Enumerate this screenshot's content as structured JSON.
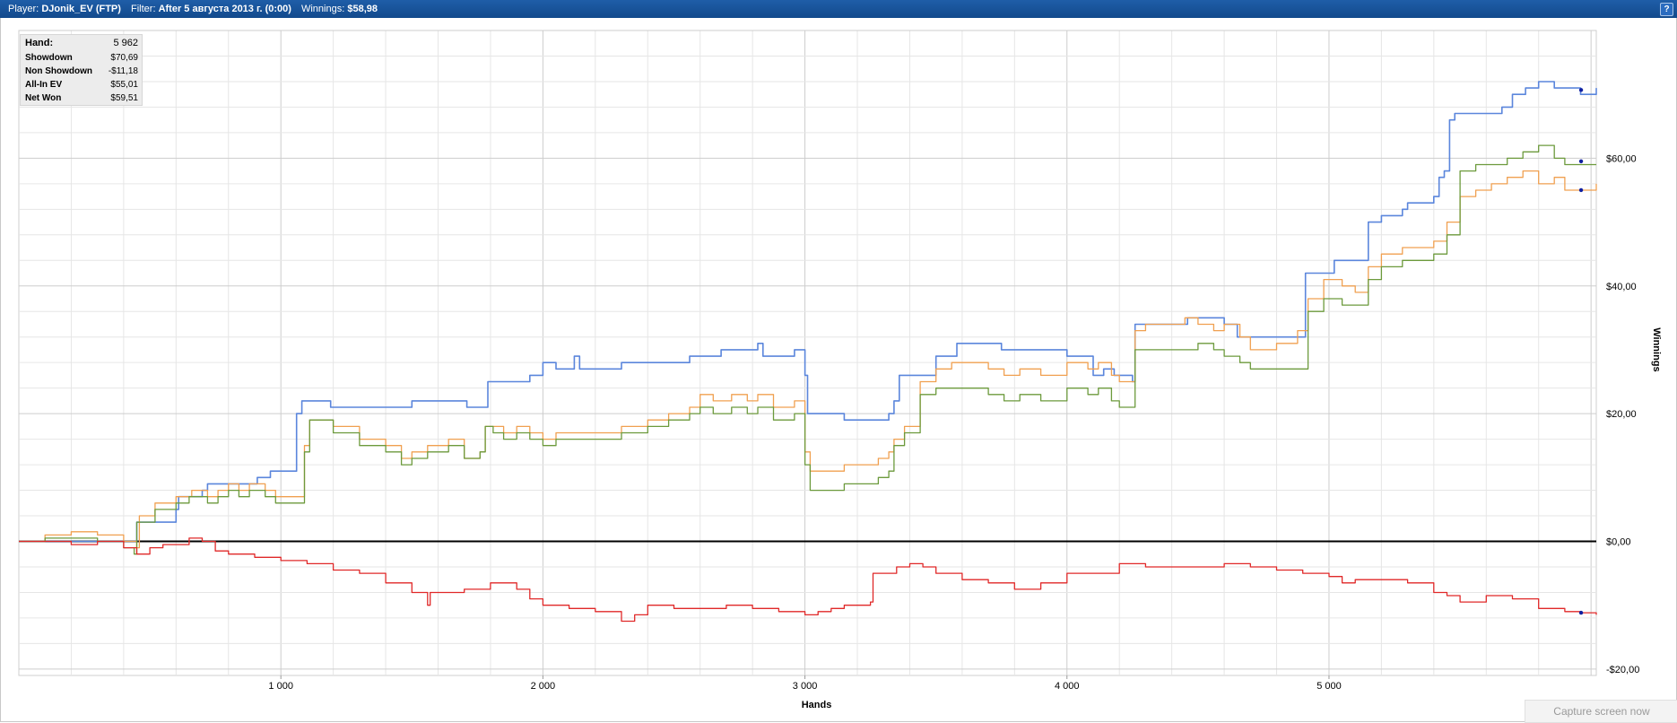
{
  "header": {
    "player_label": "Player:",
    "player_value": "DJonik_EV (FTP)",
    "filter_label": "Filter:",
    "filter_value": "After 5 августа 2013 г. (0:00)",
    "winnings_label": "Winnings:",
    "winnings_value": "$58,98",
    "help_glyph": "?"
  },
  "stats": [
    {
      "label": "Hand:",
      "value": "5 962"
    },
    {
      "label": "Showdown",
      "value": "$70,69"
    },
    {
      "label": "Non Showdown",
      "value": "-$11,18"
    },
    {
      "label": "All-In EV",
      "value": "$55,01"
    },
    {
      "label": "Net Won",
      "value": "$59,51"
    }
  ],
  "capture_button": "Capture screen now",
  "chart_data": {
    "type": "line",
    "xlabel": "Hands",
    "ylabel": "Winnings",
    "xlim": [
      0,
      6020
    ],
    "ylim": [
      -21,
      80
    ],
    "x_ticks": [
      1000,
      2000,
      3000,
      4000,
      5000
    ],
    "x_tick_labels": [
      "1 000",
      "2 000",
      "3 000",
      "4 000",
      "5 000"
    ],
    "y_ticks": [
      -20,
      0,
      20,
      40,
      60
    ],
    "y_tick_labels": [
      "-$20,00",
      "$0,00",
      "$20,00",
      "$40,00",
      "$60,00"
    ],
    "grid": true,
    "colors": {
      "showdown": "#5b86dc",
      "all_in_ev": "#f0a050",
      "net_won": "#6c9a3c",
      "non_showdown": "#e02828",
      "zero_line": "#000000",
      "marker": "#1020a0"
    },
    "series": [
      {
        "key": "showdown",
        "x": [
          0,
          440,
          450,
          600,
          610,
          700,
          720,
          760,
          790,
          910,
          960,
          1060,
          1080,
          1100,
          1190,
          1310,
          1500,
          1580,
          1710,
          1790,
          1810,
          1950,
          2000,
          2050,
          2120,
          2140,
          2300,
          2500,
          2560,
          2640,
          2680,
          2820,
          2840,
          2960,
          3000,
          3010,
          3150,
          3240,
          3320,
          3340,
          3360,
          3500,
          3560,
          3580,
          3750,
          3950,
          4000,
          4100,
          4140,
          4180,
          4250,
          4260,
          4400,
          4460,
          4600,
          4650,
          4700,
          4800,
          4880,
          4900,
          4910,
          5020,
          5140,
          5150,
          5200,
          5280,
          5300,
          5350,
          5400,
          5420,
          5440,
          5460,
          5480,
          5600,
          5660,
          5700,
          5750,
          5800,
          5860,
          5960,
          6020
        ],
        "y": [
          0,
          0,
          3,
          5,
          7,
          8,
          9,
          9,
          9,
          10,
          11,
          20,
          22,
          22,
          21,
          21,
          22,
          22,
          21,
          25,
          25,
          26,
          28,
          27,
          29,
          27,
          28,
          28,
          29,
          29,
          30,
          31,
          29,
          30,
          26,
          20,
          19,
          19,
          20,
          22,
          26,
          29,
          29,
          31,
          30,
          30,
          29,
          26,
          27,
          26,
          25,
          34,
          34,
          35,
          34,
          32,
          32,
          32,
          32,
          32,
          42,
          44,
          44,
          50,
          51,
          52,
          53,
          53,
          54,
          57,
          58,
          66,
          67,
          67,
          68,
          70,
          71,
          72,
          71,
          70,
          71
        ]
      },
      {
        "key": "all_in_ev",
        "x": [
          0,
          100,
          200,
          300,
          400,
          450,
          460,
          520,
          600,
          660,
          680,
          720,
          760,
          800,
          840,
          880,
          940,
          980,
          1050,
          1090,
          1110,
          1200,
          1300,
          1400,
          1460,
          1500,
          1560,
          1640,
          1700,
          1760,
          1780,
          1810,
          1850,
          1900,
          1950,
          2000,
          2050,
          2150,
          2300,
          2400,
          2480,
          2530,
          2560,
          2600,
          2650,
          2720,
          2780,
          2820,
          2880,
          2960,
          3000,
          3020,
          3060,
          3150,
          3240,
          3280,
          3320,
          3340,
          3380,
          3440,
          3500,
          3560,
          3620,
          3700,
          3760,
          3820,
          3900,
          3950,
          4000,
          4080,
          4120,
          4150,
          4170,
          4200,
          4250,
          4260,
          4300,
          4400,
          4450,
          4500,
          4560,
          4600,
          4660,
          4700,
          4800,
          4880,
          4900,
          4920,
          4980,
          5050,
          5100,
          5150,
          5200,
          5280,
          5350,
          5400,
          5450,
          5500,
          5560,
          5620,
          5680,
          5740,
          5800,
          5860,
          5900,
          5960,
          6020
        ],
        "y": [
          0,
          1,
          1.5,
          1,
          0,
          -1,
          4,
          6,
          7,
          8,
          8,
          7,
          8,
          9,
          8,
          9,
          8,
          7,
          7,
          15,
          19,
          18,
          16,
          15,
          13,
          14,
          15,
          16,
          13,
          14,
          18,
          18,
          17,
          18,
          17,
          16,
          17,
          17,
          18,
          19,
          20,
          20,
          21,
          23,
          22,
          23,
          22,
          23,
          21,
          22,
          14,
          11,
          11,
          12,
          12,
          13,
          14,
          16,
          18,
          25,
          27,
          28,
          28,
          27,
          26,
          27,
          26,
          26,
          28,
          27,
          28,
          28,
          26,
          25,
          25,
          33,
          34,
          34,
          35,
          34,
          33,
          34,
          32,
          30,
          31,
          33,
          33,
          38,
          41,
          40,
          39,
          43,
          45,
          46,
          46,
          47,
          50,
          54,
          55,
          56,
          57,
          58,
          56,
          57,
          55,
          55,
          56
        ]
      },
      {
        "key": "net_won",
        "x": [
          0,
          100,
          200,
          300,
          400,
          440,
          450,
          520,
          600,
          650,
          680,
          720,
          760,
          800,
          840,
          880,
          940,
          980,
          1050,
          1090,
          1110,
          1200,
          1300,
          1400,
          1460,
          1500,
          1560,
          1640,
          1700,
          1760,
          1780,
          1810,
          1850,
          1900,
          1950,
          2000,
          2050,
          2150,
          2300,
          2400,
          2480,
          2530,
          2560,
          2600,
          2650,
          2720,
          2780,
          2820,
          2880,
          2960,
          3000,
          3020,
          3060,
          3150,
          3240,
          3280,
          3320,
          3340,
          3380,
          3440,
          3500,
          3560,
          3620,
          3700,
          3760,
          3820,
          3900,
          3950,
          4000,
          4080,
          4120,
          4150,
          4170,
          4200,
          4250,
          4260,
          4300,
          4400,
          4450,
          4500,
          4560,
          4600,
          4660,
          4700,
          4800,
          4880,
          4900,
          4920,
          4980,
          5050,
          5100,
          5150,
          5200,
          5280,
          5350,
          5400,
          5450,
          5500,
          5560,
          5620,
          5680,
          5740,
          5800,
          5860,
          5900,
          5960,
          6020
        ],
        "y": [
          0,
          0.5,
          0.5,
          0,
          -1,
          -2,
          3,
          5,
          6,
          7,
          7,
          6,
          7,
          8,
          7,
          8,
          7,
          6,
          6,
          14,
          19,
          17,
          15,
          14,
          12,
          13,
          14,
          15,
          13,
          14,
          18,
          17,
          16,
          17,
          16,
          15,
          16,
          16,
          17,
          18,
          19,
          19,
          20,
          21,
          20,
          21,
          20,
          21,
          19,
          20,
          12,
          8,
          8,
          9,
          9,
          10,
          11,
          15,
          17,
          23,
          24,
          24,
          24,
          23,
          22,
          23,
          22,
          22,
          24,
          23,
          24,
          24,
          22,
          21,
          21,
          30,
          30,
          30,
          30,
          31,
          30,
          29,
          28,
          27,
          27,
          27,
          27,
          36,
          38,
          37,
          37,
          41,
          43,
          44,
          44,
          45,
          48,
          58,
          59,
          59,
          60,
          61,
          62,
          60,
          59,
          59,
          59
        ]
      },
      {
        "key": "non_showdown",
        "x": [
          0,
          100,
          200,
          300,
          400,
          450,
          500,
          550,
          600,
          650,
          700,
          750,
          800,
          900,
          1000,
          1100,
          1200,
          1300,
          1400,
          1500,
          1560,
          1570,
          1600,
          1700,
          1800,
          1900,
          1950,
          2000,
          2100,
          2200,
          2300,
          2350,
          2400,
          2500,
          2600,
          2700,
          2800,
          2900,
          3000,
          3050,
          3100,
          3150,
          3200,
          3250,
          3260,
          3300,
          3350,
          3400,
          3450,
          3500,
          3600,
          3700,
          3800,
          3900,
          4000,
          4100,
          4200,
          4300,
          4400,
          4500,
          4600,
          4700,
          4800,
          4900,
          5000,
          5050,
          5100,
          5200,
          5300,
          5400,
          5450,
          5500,
          5600,
          5700,
          5800,
          5900,
          5960,
          6020
        ],
        "y": [
          0,
          0,
          -0.5,
          0,
          -1,
          -2,
          -1,
          -0.5,
          -0.5,
          0.5,
          0,
          -1.5,
          -2,
          -2.5,
          -3,
          -3.5,
          -4.5,
          -5,
          -6.5,
          -8,
          -10,
          -8,
          -8,
          -7.5,
          -6.5,
          -7.5,
          -9,
          -10,
          -10.5,
          -11,
          -12.5,
          -11.5,
          -10,
          -10.5,
          -10.5,
          -10,
          -10.5,
          -11,
          -11.5,
          -11,
          -10.5,
          -10,
          -10,
          -9.5,
          -5,
          -5,
          -4,
          -3.5,
          -4,
          -5,
          -6,
          -6.5,
          -7.5,
          -6.5,
          -5,
          -5,
          -3.5,
          -4,
          -4,
          -4,
          -3.5,
          -4,
          -4.5,
          -5,
          -5.5,
          -6.5,
          -6,
          -6,
          -6.5,
          -8,
          -8.5,
          -9.5,
          -8.5,
          -9,
          -10.5,
          -11,
          -11.18,
          -11.5
        ]
      }
    ],
    "end_markers": [
      {
        "series": "showdown",
        "x": 5962,
        "y": 70.69
      },
      {
        "series": "net_won",
        "x": 5962,
        "y": 59.51
      },
      {
        "series": "all_in_ev",
        "x": 5962,
        "y": 55.01
      },
      {
        "series": "non_showdown",
        "x": 5962,
        "y": -11.18
      }
    ]
  }
}
